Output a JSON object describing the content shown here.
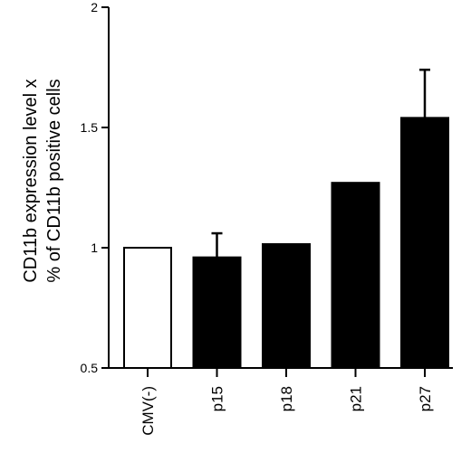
{
  "chart_data": {
    "type": "bar",
    "categories": [
      "CMV(-)",
      "p15",
      "p18",
      "p21",
      "p27"
    ],
    "values": [
      1.0,
      0.96,
      1.015,
      1.27,
      1.54
    ],
    "errors": [
      null,
      0.1,
      null,
      null,
      0.2
    ],
    "bar_fills": [
      "#ffffff",
      "#000000",
      "#000000",
      "#000000",
      "#000000"
    ],
    "ylabel_lines": [
      "CD11b expression level x",
      "% of CD11b positive cells"
    ],
    "ylim": [
      0.5,
      2.0
    ],
    "yticks": [
      0.5,
      1,
      1.5,
      2
    ],
    "ytick_labels": [
      "0.5",
      "1",
      "1.5",
      "2"
    ],
    "grid": false,
    "legend": "none"
  }
}
